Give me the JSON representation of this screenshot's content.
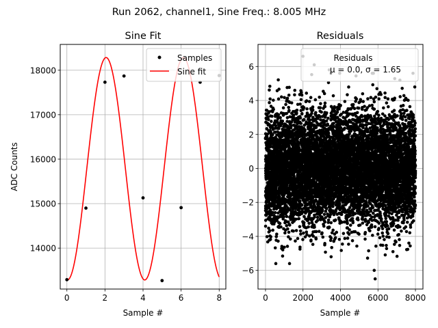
{
  "figure_title": "Run 2062, channel1, Sine Freq.: 8.005 MHz",
  "chart_data": [
    {
      "type": "line",
      "title": "Sine Fit",
      "xlabel": "Sample #",
      "ylabel": "ADC Counts",
      "xlim": [
        -0.35,
        8.35
      ],
      "ylim": [
        13080,
        18580
      ],
      "xticks": [
        0,
        2,
        4,
        6,
        8
      ],
      "xtick_labels": [
        "0",
        "2",
        "4",
        "6",
        "8"
      ],
      "yticks": [
        14000,
        15000,
        16000,
        17000,
        18000
      ],
      "ytick_labels": [
        "14000",
        "15000",
        "16000",
        "17000",
        "18000"
      ],
      "grid": true,
      "legend": {
        "position": "top-right",
        "entries": [
          "Samples",
          "Sine fit"
        ]
      },
      "series": [
        {
          "name": "Samples",
          "kind": "scatter",
          "color": "#000000",
          "x": [
            0,
            1,
            2,
            3,
            4,
            5,
            6,
            7,
            8
          ],
          "y": [
            13290,
            14900,
            17730,
            17870,
            15130,
            13270,
            14910,
            17730,
            17880
          ]
        },
        {
          "name": "Sine fit",
          "kind": "line",
          "color": "#ff0000",
          "model": {
            "offset": 15785,
            "amplitude": 2500,
            "period": 4.06,
            "phase_x": 0.03
          },
          "x_range": [
            0,
            8
          ]
        }
      ]
    },
    {
      "type": "scatter",
      "title": "Residuals",
      "xlabel": "Sample #",
      "ylabel": "",
      "xlim": [
        -400,
        8400
      ],
      "ylim": [
        -7.1,
        7.3
      ],
      "xticks": [
        0,
        2000,
        4000,
        6000,
        8000
      ],
      "xtick_labels": [
        "0",
        "2000",
        "4000",
        "6000",
        "8000"
      ],
      "yticks": [
        -6,
        -4,
        -2,
        0,
        2,
        4,
        6
      ],
      "ytick_labels": [
        "−6",
        "−4",
        "−2",
        "0",
        "2",
        "4",
        "6"
      ],
      "grid": true,
      "legend": {
        "position": "top-right",
        "entries": [
          "Residuals",
          "μ = 0.0, σ = 1.65"
        ]
      },
      "series": [
        {
          "name": "Residuals",
          "color": "#000000",
          "x_range": [
            0,
            8000
          ],
          "count": 8000,
          "mean": 0.0,
          "std": 1.65,
          "notable_points": [
            {
              "x": 2000,
              "y": 6.6
            },
            {
              "x": 2600,
              "y": 6.1
            },
            {
              "x": 3400,
              "y": 5.8
            },
            {
              "x": 5800,
              "y": -6.0
            },
            {
              "x": 5850,
              "y": -6.5
            },
            {
              "x": 550,
              "y": -5.6
            },
            {
              "x": 3500,
              "y": -5.2
            },
            {
              "x": 6800,
              "y": -4.9
            }
          ]
        }
      ]
    }
  ]
}
